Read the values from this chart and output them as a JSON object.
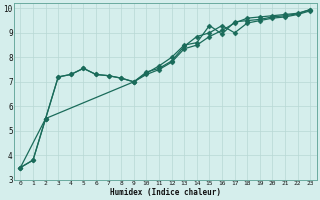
{
  "xlabel": "Humidex (Indice chaleur)",
  "background_color": "#d5eeec",
  "grid_color": "#b8d8d5",
  "line_color": "#1a6b5a",
  "xlim": [
    -0.5,
    23.5
  ],
  "ylim": [
    3.0,
    10.2
  ],
  "xticks": [
    0,
    1,
    2,
    3,
    4,
    5,
    6,
    7,
    8,
    9,
    10,
    11,
    12,
    13,
    14,
    15,
    16,
    17,
    18,
    19,
    20,
    21,
    22,
    23
  ],
  "yticks": [
    3,
    4,
    5,
    6,
    7,
    8,
    9,
    10
  ],
  "line1_x": [
    0,
    1,
    2,
    3,
    4,
    5,
    6,
    7,
    8,
    9,
    10,
    11,
    12,
    13,
    14,
    15,
    16,
    17,
    18,
    19,
    20,
    21,
    22,
    23
  ],
  "line1_y": [
    3.5,
    3.8,
    5.5,
    7.2,
    7.3,
    7.55,
    7.3,
    7.25,
    7.15,
    7.0,
    7.4,
    7.55,
    7.85,
    8.45,
    8.85,
    9.0,
    9.3,
    9.0,
    9.4,
    9.5,
    9.6,
    9.65,
    9.75,
    9.9
  ],
  "line2_x": [
    0,
    1,
    2,
    3,
    4,
    5,
    6,
    7,
    8,
    9,
    10,
    11,
    12,
    13,
    14,
    15,
    16,
    17,
    18,
    19,
    20,
    21,
    22,
    23
  ],
  "line2_y": [
    3.5,
    3.8,
    5.5,
    7.2,
    7.3,
    7.55,
    7.3,
    7.25,
    7.15,
    7.0,
    7.35,
    7.65,
    8.0,
    8.5,
    8.6,
    9.3,
    8.95,
    9.45,
    9.5,
    9.55,
    9.65,
    9.7,
    9.78,
    9.95
  ],
  "line3_x": [
    0,
    2,
    9,
    10,
    11,
    12,
    13,
    14,
    15,
    16,
    17,
    18,
    19,
    20,
    21,
    22,
    23
  ],
  "line3_y": [
    3.5,
    5.5,
    7.0,
    7.3,
    7.5,
    7.8,
    8.35,
    8.5,
    8.85,
    9.1,
    9.4,
    9.6,
    9.65,
    9.7,
    9.75,
    9.8,
    9.95
  ]
}
